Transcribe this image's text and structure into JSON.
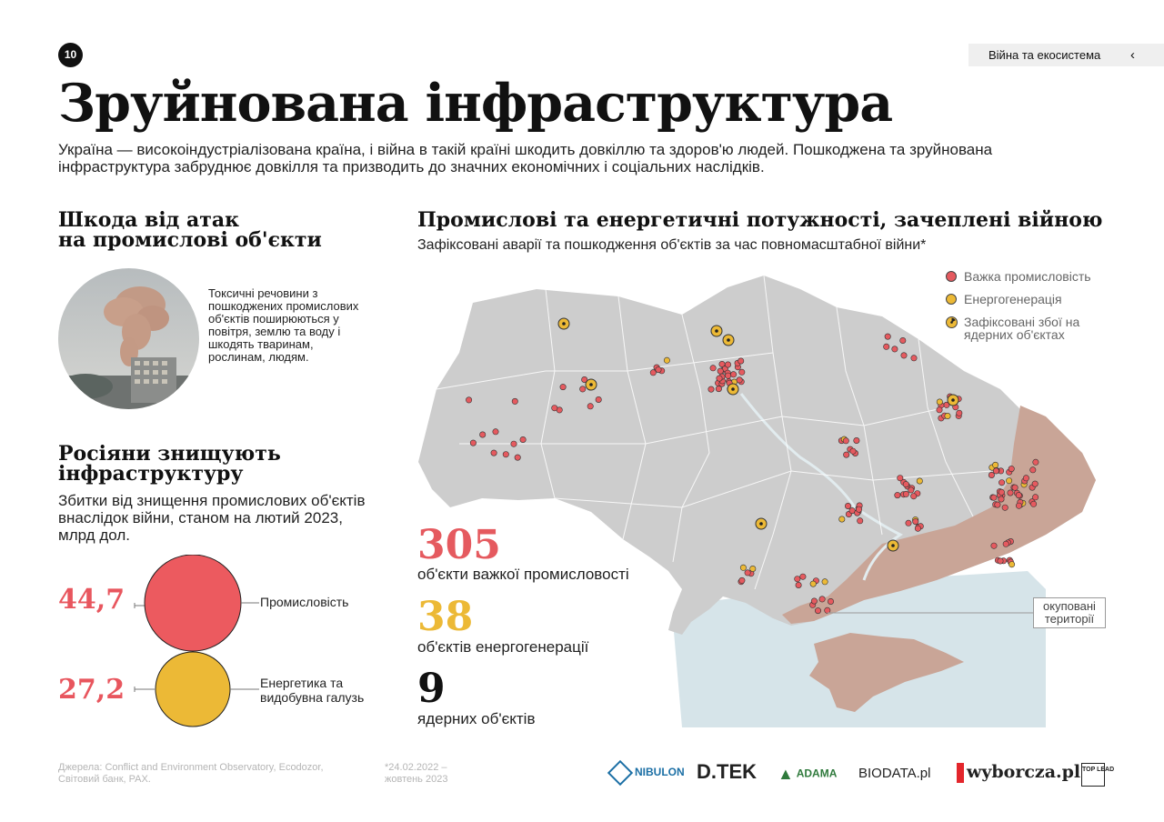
{
  "page_number": "10",
  "breadcrumb": "Війна та екосистема",
  "title": "Зруйнована інфраструктура",
  "lead": "Україна — високоіндустріалізована країна, і війна в такій країні шкодить довкіллю та здоров'ю людей. Пошкоджена та зруйнована інфраструктура забруднює довкілля та призводить до значних економічних і соціальних наслідків.",
  "left": {
    "heading1": [
      "Шкода від атак",
      "на промислові об'єкти"
    ],
    "photo_text": "Токсичні речовини з пошкоджених промислових об'єктів поширюються у повітря, землю та воду і шкодять тваринам, рослинам, людям.",
    "heading2": [
      "Росіяни знищують",
      "інфраструктуру"
    ],
    "damage_sub": "Збитки від знищення промислових об'єктів внаслідок війни, станом на лютий 2023, млрд дол.",
    "damages": [
      {
        "value": "44,7",
        "label": "Промисловість",
        "amount": 44.7,
        "color": "#ec5a5f"
      },
      {
        "value": "27,2",
        "label": "Енергетика та видобувна галузь",
        "amount": 27.2,
        "color": "#ecb936"
      }
    ]
  },
  "map": {
    "heading": "Промислові та енергетичні потужності, зачеплені війною",
    "subtitle": "Зафіксовані аварії та пошкодження об'єктів за час повномасштабної війни*",
    "legend": [
      {
        "label": "Важка промисловість",
        "color": "#e55a5f"
      },
      {
        "label": "Енергогенерація",
        "color": "#ecb936"
      },
      {
        "label": "Зафіксовані збої на ядерних об'єктах",
        "color": "#ecb936"
      }
    ],
    "occupied_label": "окуповані території",
    "stats": [
      {
        "number": "305",
        "label": "об'єкти важкої промисловості",
        "color": "#e55a5f"
      },
      {
        "number": "38",
        "label": "об'єктів енергогенерації",
        "color": "#ecb936"
      },
      {
        "number": "9",
        "label": "ядерних об'єктів",
        "color": "#111111"
      }
    ],
    "colors": {
      "land": "#cdcdcd",
      "occupied": "#c9a597",
      "sea": "#d6e4e9",
      "industry": "#e55a5f",
      "energy": "#ecb936"
    }
  },
  "footer": {
    "sources": "Джерела: Conflict and Environment Observatory, Ecodozor, Світовий банк, PAX.",
    "period": "*24.02.2022 – жовтень 2023"
  },
  "logos": {
    "nibulon": "NIBULON",
    "dtek": "D.TEK",
    "adama": "ADAMA",
    "biodata": "BIODATA.pl",
    "wyborcza": "wyborcza.pl",
    "toplead": "TOP LEAD"
  }
}
